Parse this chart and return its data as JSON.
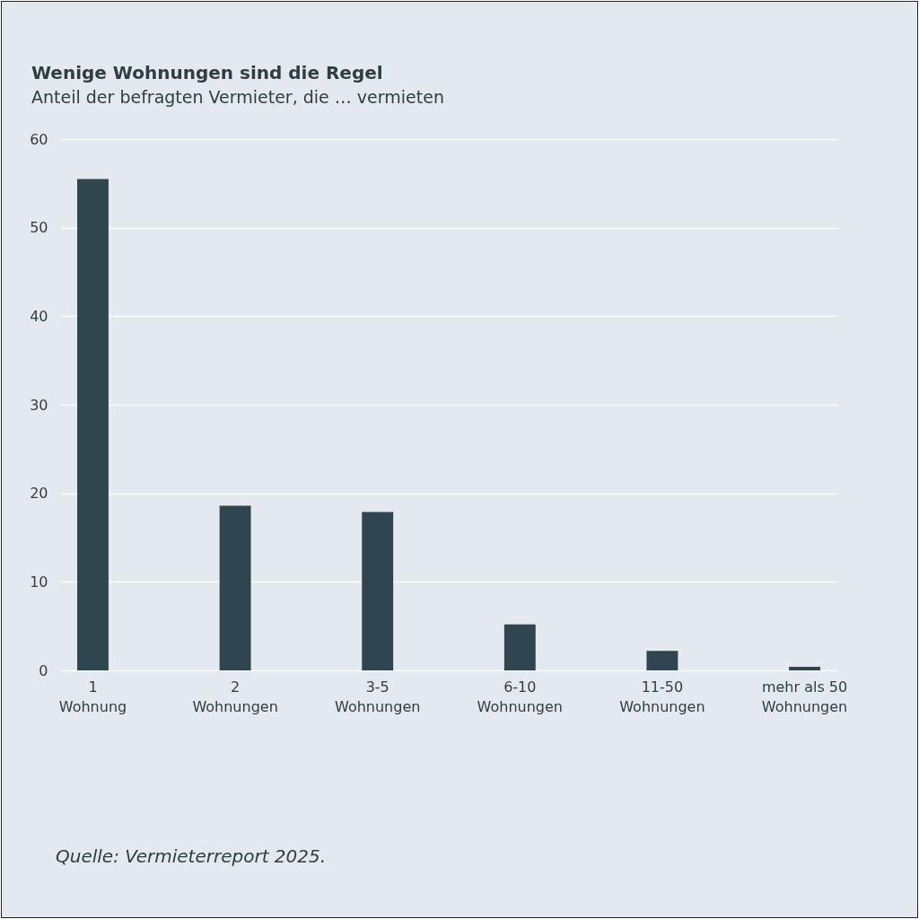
{
  "chart_data": {
    "type": "bar",
    "title": "Wenige Wohnungen sind die Regel",
    "subtitle": "Anteil der befragten Vermieter, die … vermieten",
    "categories": [
      "1 Wohnung",
      "2 Wohnungen",
      "3-5 Wohnungen",
      "6-10 Wohnungen",
      "11-50 Wohnungen",
      "mehr als 50 Wohnungen"
    ],
    "values": [
      55.5,
      18.6,
      17.9,
      5.2,
      2.2,
      0.4
    ],
    "color": "#2f4650",
    "ylim": [
      0,
      60
    ],
    "yticks": [
      0,
      10,
      20,
      30,
      40,
      50,
      60
    ],
    "grid": "y",
    "annotations": [
      "Quelle: Vermieterreport 2025."
    ]
  }
}
